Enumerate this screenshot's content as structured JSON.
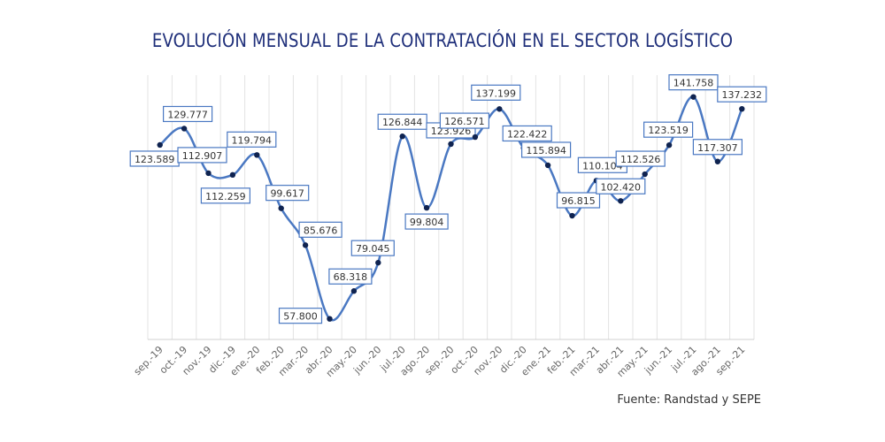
{
  "chart_data": {
    "type": "line",
    "title": "EVOLUCIÓN MENSUAL DE LA CONTRATACIÓN EN EL SECTOR LOGÍSTICO",
    "source": "Fuente: Randstad y SEPE",
    "categories": [
      "sep.-19",
      "oct.-19",
      "nov.-19",
      "dic.-19",
      "ene.-20",
      "feb.-20",
      "mar.-20",
      "abr.-20",
      "may.-20",
      "jun.-20",
      "jul.-20",
      "ago.-20",
      "sep.-20",
      "oct.-20",
      "nov.-20",
      "dic.-20",
      "ene.-21",
      "feb.-21",
      "mar.-21",
      "abr.-21",
      "may.-21",
      "jun.-21",
      "jul.-21",
      "ago.-21",
      "sep.-21"
    ],
    "values": [
      123589,
      129777,
      112907,
      112259,
      119794,
      99617,
      85676,
      57800,
      68318,
      79045,
      126844,
      99804,
      123926,
      126571,
      137199,
      122422,
      115894,
      96815,
      110104,
      102420,
      112526,
      123519,
      141758,
      117307,
      137232
    ],
    "data_labels": [
      "123.589",
      "129.777",
      "112.907",
      "112.259",
      "119.794",
      "99.617",
      "85.676",
      "57.800",
      "68.318",
      "79.045",
      "126.844",
      "99.804",
      "123.926",
      "126.571",
      "137.199",
      "122.422",
      "115.894",
      "96.815",
      "110.104",
      "102.420",
      "112.526",
      "123.519",
      "141.758",
      "117.307",
      "137.232"
    ],
    "ylim": [
      50000,
      150000
    ],
    "grid": "vertical",
    "smooth": true,
    "colors": {
      "line": "#4a78c2",
      "marker": "#0f2350",
      "label_border": "#4a78c2",
      "grid": "#e3e3e3",
      "title": "#1f2f7a"
    }
  }
}
